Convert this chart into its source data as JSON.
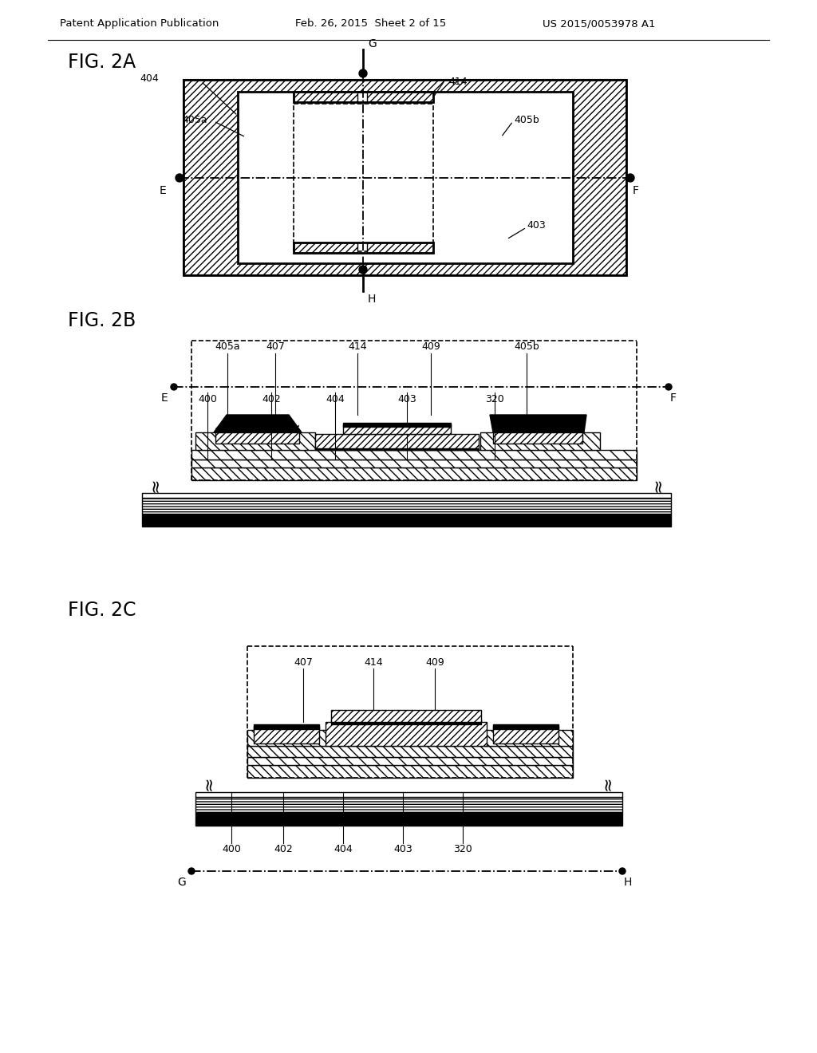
{
  "bg_color": "#ffffff",
  "header_left": "Patent Application Publication",
  "header_center": "Feb. 26, 2015  Sheet 2 of 15",
  "header_right": "US 2015/0053978 A1",
  "fig2a_label": "FIG. 2A",
  "fig2b_label": "FIG. 2B",
  "fig2c_label": "FIG. 2C"
}
